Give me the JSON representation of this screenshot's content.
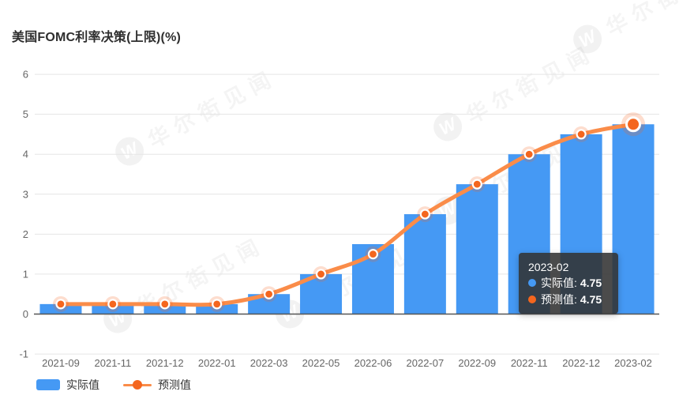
{
  "title": "美国FOMC利率决策(上限)(%)",
  "watermark": {
    "logo": "W",
    "text": "华尔街见闻"
  },
  "colors": {
    "bar": "#4599f4",
    "line": "#fa8c49",
    "dot": "#f4661e",
    "grid": "#e5e5e5",
    "axis_line": "#555555",
    "axis_label": "#666666",
    "title_text": "#2e2e2e",
    "tooltip_bg": "rgba(50,50,50,0.88)"
  },
  "tooltip": {
    "title": "2023-02",
    "items": [
      {
        "label": "实际值:",
        "value": "4.75",
        "color": "#4599f4"
      },
      {
        "label": "预测值:",
        "value": "4.75",
        "color": "#f4661e"
      }
    ]
  },
  "chart_data": {
    "type": "bar",
    "title": "美国FOMC利率决策(上限)(%)",
    "categories": [
      "2021-09",
      "2021-11",
      "2021-12",
      "2022-01",
      "2022-03",
      "2022-05",
      "2022-06",
      "2022-07",
      "2022-09",
      "2022-11",
      "2022-12",
      "2023-02"
    ],
    "series": [
      {
        "name": "实际值",
        "type": "bar",
        "color": "#4599f4",
        "values": [
          0.25,
          0.25,
          0.25,
          0.25,
          0.5,
          1.0,
          1.75,
          2.5,
          3.25,
          4.0,
          4.5,
          4.75
        ]
      },
      {
        "name": "预测值",
        "type": "line",
        "color": "#fa8c49",
        "dot_color": "#f4661e",
        "smooth": true,
        "values": [
          0.25,
          0.25,
          0.25,
          0.25,
          0.5,
          1.0,
          1.5,
          2.5,
          3.25,
          4.0,
          4.5,
          4.75
        ]
      }
    ],
    "xlabel": "",
    "ylabel": "",
    "ylim": [
      -1,
      6
    ],
    "yticks": [
      "6",
      "5",
      "4",
      "3",
      "2",
      "1",
      "0",
      "-1"
    ],
    "grid": true,
    "legend_position": "bottom-left",
    "highlight_index": 11
  }
}
